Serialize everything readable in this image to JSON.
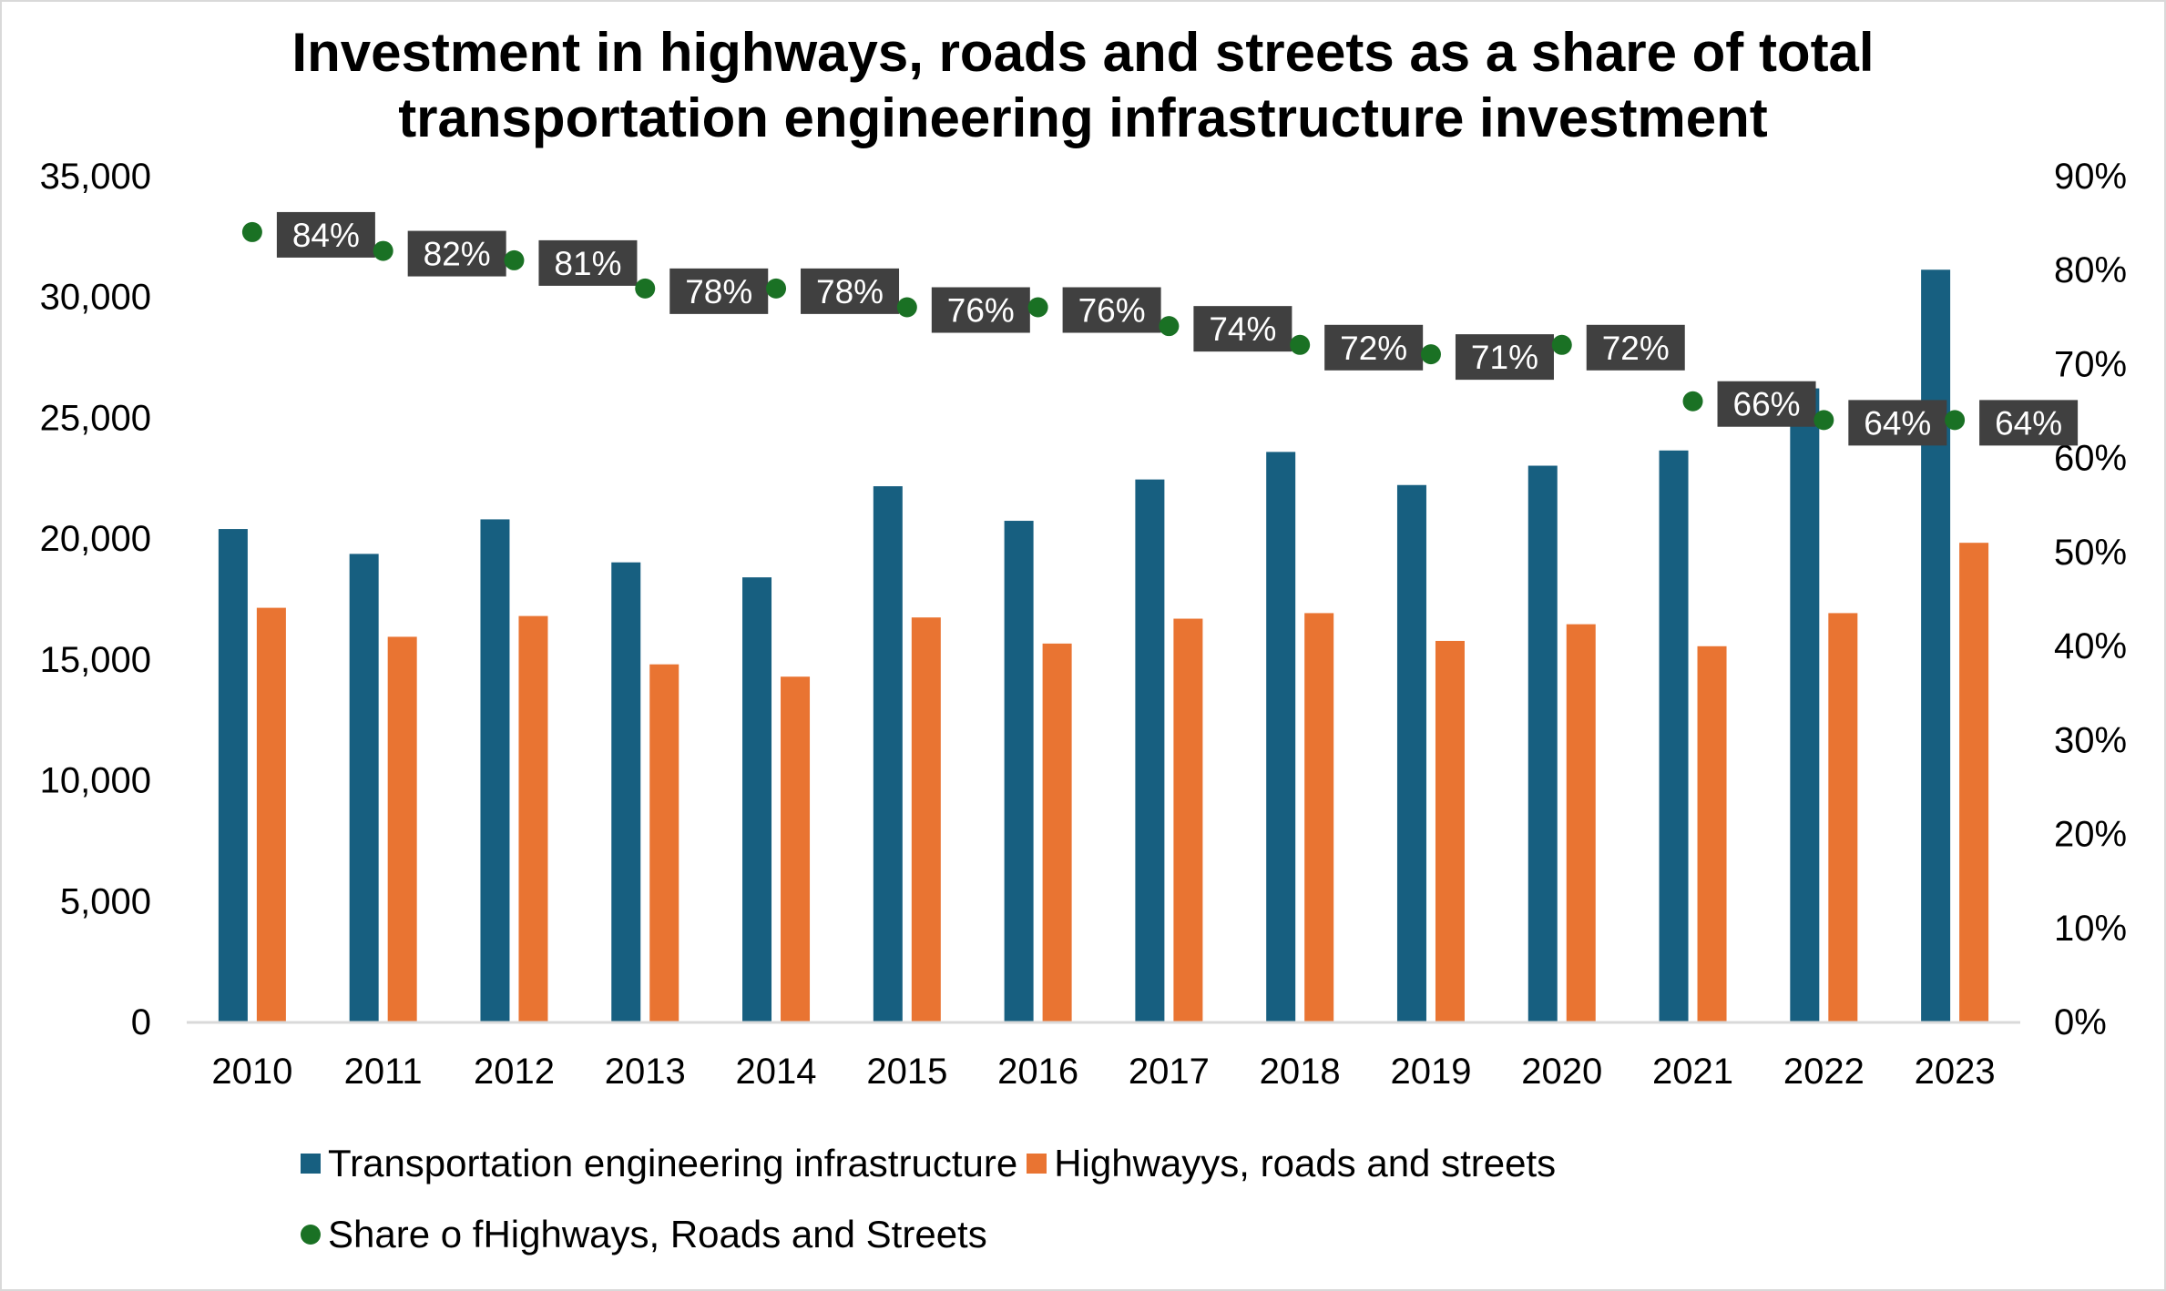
{
  "chart_data": {
    "type": "bar",
    "title": "Investment in highways, roads and streets as a share of total transportation engineering infrastructure investment",
    "title_lines": [
      "Investment in highways, roads and streets as a share of total",
      "transportation engineering infrastructure investment"
    ],
    "categories": [
      "2010",
      "2011",
      "2012",
      "2013",
      "2014",
      "2015",
      "2016",
      "2017",
      "2018",
      "2019",
      "2020",
      "2021",
      "2022",
      "2023"
    ],
    "y_left": {
      "ylim": [
        0,
        35000
      ],
      "ticks": [
        0,
        5000,
        10000,
        15000,
        20000,
        25000,
        30000,
        35000
      ],
      "tick_labels": [
        "0",
        "5,000",
        "10,000",
        "15,000",
        "20,000",
        "25,000",
        "30,000",
        "35,000"
      ]
    },
    "y_right": {
      "ylim": [
        0,
        0.9
      ],
      "ticks": [
        0,
        0.1,
        0.2,
        0.3,
        0.4,
        0.5,
        0.6,
        0.7,
        0.8,
        0.9
      ],
      "tick_labels": [
        "0%",
        "10%",
        "20%",
        "30%",
        "40%",
        "50%",
        "60%",
        "70%",
        "80%",
        "90%"
      ]
    },
    "series": [
      {
        "name": "Transportation engineering infrastructure",
        "type": "bar",
        "axis": "left",
        "color": "#175f80",
        "values": [
          20380,
          19350,
          20780,
          19000,
          18380,
          22150,
          20720,
          22430,
          23570,
          22200,
          23000,
          23630,
          26200,
          31110
        ]
      },
      {
        "name": "Highwayys, roads and streets",
        "type": "bar",
        "axis": "left",
        "color": "#e97432",
        "values": [
          17120,
          15920,
          16780,
          14780,
          14270,
          16720,
          15640,
          16670,
          16900,
          15750,
          16440,
          15530,
          16900,
          19810
        ]
      },
      {
        "name": "Share o fHighways, Roads and Streets",
        "type": "scatter",
        "axis": "right",
        "color": "#1a7124",
        "values": [
          0.84,
          0.82,
          0.81,
          0.78,
          0.78,
          0.76,
          0.76,
          0.74,
          0.72,
          0.71,
          0.72,
          0.66,
          0.64,
          0.64
        ],
        "data_labels": [
          "84%",
          "82%",
          "81%",
          "78%",
          "78%",
          "76%",
          "76%",
          "74%",
          "72%",
          "71%",
          "72%",
          "66%",
          "64%",
          "64%"
        ]
      }
    ],
    "legend_position": "bottom",
    "grid": false
  }
}
